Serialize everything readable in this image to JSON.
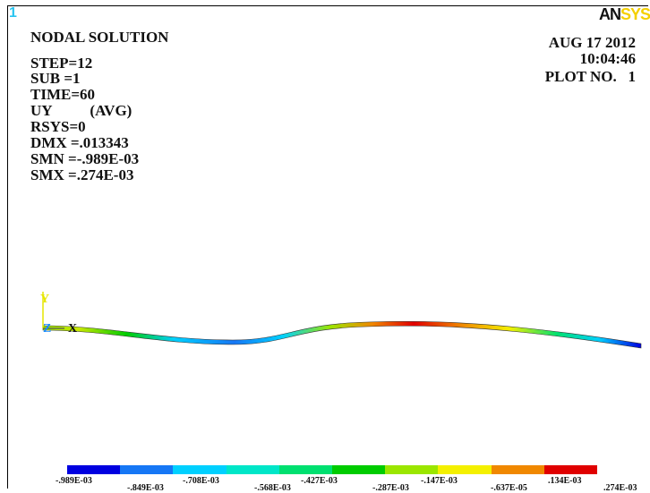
{
  "window_number": "1",
  "logo": {
    "part1": "AN",
    "part2": "SYS"
  },
  "title": "NODAL SOLUTION",
  "info_lines": [
    "STEP=12",
    "SUB =1",
    "TIME=60",
    "UY          (AVG)",
    "RSYS=0",
    "DMX =.013343",
    "SMN =-.989E-03",
    "SMX =.274E-03"
  ],
  "date": "AUG 17 2012",
  "time": "10:04:46",
  "plot_no": "PLOT NO.   1",
  "triad": {
    "y": "Y",
    "z": "Z",
    "x": "X"
  },
  "legend": {
    "colors": [
      "#0000e0",
      "#1677f5",
      "#00d0ff",
      "#00e6c8",
      "#00e070",
      "#00cc00",
      "#9be600",
      "#f4f000",
      "#f08800",
      "#e00000"
    ],
    "labels_top": [
      "-.989E-03",
      "-.708E-03",
      "-.427E-03",
      "-.147E-03",
      ".134E-03"
    ],
    "labels_bottom": [
      "-.849E-03",
      "-.568E-03",
      "-.287E-03",
      "-.637E-05",
      ".274E-03"
    ]
  }
}
